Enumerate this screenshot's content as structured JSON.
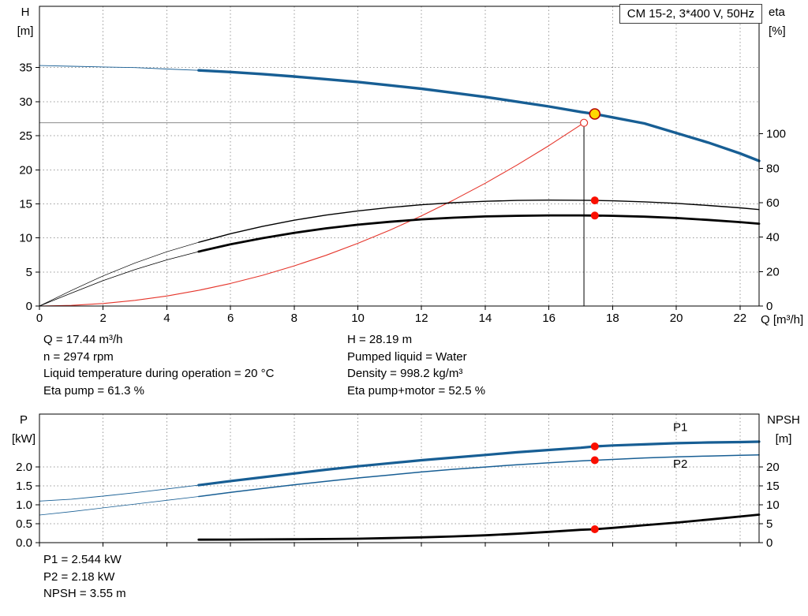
{
  "window": {
    "title_box": "CM 15-2, 3*400 V, 50Hz"
  },
  "colors": {
    "curve_blue": "#175e94",
    "curve_black": "#000000",
    "curve_red": "#e5352b",
    "dot_red": "#fa0f00",
    "duty_yellow": "#ffd800",
    "duty_ring": "#b40000",
    "grid": "#9a9a9a",
    "guide_gray": "#8c8c8c"
  },
  "info_top_left": [
    "Q = 17.44 m³/h",
    "n = 2974 rpm",
    "Liquid temperature during operation = 20 °C",
    "Eta pump = 61.3 %"
  ],
  "info_top_right": [
    "H = 28.19 m",
    "Pumped liquid = Water",
    "Density = 998.2 kg/m³",
    "Eta pump+motor = 52.5 %"
  ],
  "info_bottom": [
    "P1 = 2.544 kW",
    "P2 = 2.18 kW",
    "NPSH = 3.55 m"
  ],
  "chart_data": [
    {
      "id": "head-efficiency-chart",
      "type": "line",
      "title": "CM 15-2, 3*400 V, 50Hz",
      "xlabel": "Q [m³/h]",
      "xlim": [
        0,
        22.6
      ],
      "x_ticks": [
        0,
        2,
        4,
        6,
        8,
        10,
        12,
        14,
        16,
        18,
        20,
        22
      ],
      "x_tick_labels": [
        "0",
        "2",
        "4",
        "6",
        "8",
        "10",
        "12",
        "14",
        "16",
        "18",
        "20",
        "22"
      ],
      "show_x_labels": true,
      "left_axis": {
        "label": [
          "H",
          "[m]"
        ],
        "lim": [
          0,
          44
        ],
        "ticks": [
          0,
          5,
          10,
          15,
          20,
          25,
          30,
          35
        ],
        "labels": [
          "0",
          "5",
          "10",
          "15",
          "20",
          "25",
          "30",
          "35"
        ]
      },
      "right_axis": {
        "label": [
          "eta",
          "[%]"
        ],
        "lim": [
          0,
          174
        ],
        "ticks": [
          0,
          20,
          40,
          60,
          80,
          100
        ],
        "labels": [
          "0",
          "20",
          "40",
          "60",
          "80",
          "100"
        ]
      },
      "guides": {
        "h_value": 26.9,
        "v_q": 17.1,
        "v_top": 26.9
      },
      "series": [
        {
          "id": "system-curve",
          "name": "System curve",
          "axis": "left",
          "color": "#e5352b",
          "width": 1.1,
          "points": [
            [
              0,
              0
            ],
            [
              1,
              0.09
            ],
            [
              2,
              0.37
            ],
            [
              3,
              0.83
            ],
            [
              4,
              1.47
            ],
            [
              5,
              2.3
            ],
            [
              6,
              3.31
            ],
            [
              7,
              4.51
            ],
            [
              8,
              5.89
            ],
            [
              9,
              7.45
            ],
            [
              10,
              9.2
            ],
            [
              11,
              11.13
            ],
            [
              12,
              13.25
            ],
            [
              13,
              15.55
            ],
            [
              14,
              18.03
            ],
            [
              15,
              20.7
            ],
            [
              16,
              23.55
            ],
            [
              17,
              26.6
            ],
            [
              17.1,
              26.9
            ]
          ]
        },
        {
          "id": "eta-pump-curve",
          "name": "Eta pump",
          "axis": "right",
          "color": "#000000",
          "width": 1.4,
          "thin_until": 5,
          "thin_width": 0.7,
          "points": [
            [
              0,
              0
            ],
            [
              1,
              9
            ],
            [
              2,
              17.5
            ],
            [
              3,
              25
            ],
            [
              4,
              31.5
            ],
            [
              5,
              37
            ],
            [
              6,
              42
            ],
            [
              7,
              46.2
            ],
            [
              8,
              49.8
            ],
            [
              9,
              52.8
            ],
            [
              10,
              55.2
            ],
            [
              11,
              57.2
            ],
            [
              12,
              58.8
            ],
            [
              13,
              60
            ],
            [
              14,
              60.8
            ],
            [
              15,
              61.3
            ],
            [
              16,
              61.5
            ],
            [
              17,
              61.4
            ],
            [
              17.44,
              61.3
            ],
            [
              18,
              61.1
            ],
            [
              19,
              60.5
            ],
            [
              20,
              59.6
            ],
            [
              21,
              58.4
            ],
            [
              22,
              57
            ],
            [
              22.6,
              56
            ]
          ]
        },
        {
          "id": "eta-pump-motor-curve",
          "name": "Eta pump+motor",
          "axis": "right",
          "color": "#000000",
          "width": 2.8,
          "thin_until": 5,
          "thin_width": 0.8,
          "points": [
            [
              0,
              0
            ],
            [
              1,
              7.5
            ],
            [
              2,
              14.8
            ],
            [
              3,
              21.2
            ],
            [
              4,
              26.8
            ],
            [
              5,
              31.6
            ],
            [
              6,
              35.8
            ],
            [
              7,
              39.4
            ],
            [
              8,
              42.5
            ],
            [
              9,
              45.1
            ],
            [
              10,
              47.2
            ],
            [
              11,
              48.9
            ],
            [
              12,
              50.3
            ],
            [
              13,
              51.3
            ],
            [
              14,
              52
            ],
            [
              15,
              52.4
            ],
            [
              16,
              52.6
            ],
            [
              17,
              52.6
            ],
            [
              17.44,
              52.5
            ],
            [
              18,
              52.4
            ],
            [
              19,
              51.9
            ],
            [
              20,
              51.1
            ],
            [
              21,
              50
            ],
            [
              22,
              48.7
            ],
            [
              22.6,
              47.8
            ]
          ]
        },
        {
          "id": "hq-curve",
          "name": "H-Q pump curve",
          "axis": "left",
          "color": "#175e94",
          "width": 3.4,
          "thin_until": 5,
          "thin_width": 0.9,
          "points": [
            [
              0,
              35.3
            ],
            [
              1,
              35.2
            ],
            [
              2,
              35.1
            ],
            [
              3,
              35.0
            ],
            [
              4,
              34.8
            ],
            [
              5,
              34.6
            ],
            [
              6,
              34.35
            ],
            [
              7,
              34.05
            ],
            [
              8,
              33.7
            ],
            [
              9,
              33.3
            ],
            [
              10,
              32.9
            ],
            [
              11,
              32.4
            ],
            [
              12,
              31.9
            ],
            [
              13,
              31.3
            ],
            [
              14,
              30.7
            ],
            [
              15,
              30.0
            ],
            [
              16,
              29.3
            ],
            [
              17,
              28.5
            ],
            [
              17.44,
              28.19
            ],
            [
              18,
              27.7
            ],
            [
              19,
              26.8
            ],
            [
              20,
              25.4
            ],
            [
              21,
              24.0
            ],
            [
              22,
              22.4
            ],
            [
              22.6,
              21.3
            ]
          ]
        }
      ],
      "markers": [
        {
          "id": "requested-duty-point",
          "axis": "left",
          "q": 17.1,
          "v": 26.9,
          "r": 4.5,
          "fill": "#ffffff",
          "stroke": "#e5352b",
          "sw": 1.2
        },
        {
          "id": "eta-pump-point",
          "axis": "right",
          "q": 17.44,
          "v": 61.3,
          "r": 5,
          "fill": "#fa0f00"
        },
        {
          "id": "eta-pump-motor-point",
          "axis": "right",
          "q": 17.44,
          "v": 52.5,
          "r": 5,
          "fill": "#fa0f00"
        },
        {
          "id": "duty-point",
          "axis": "left",
          "q": 17.44,
          "v": 28.19,
          "r": 6.5,
          "fill": "#ffd800",
          "stroke": "#b40000",
          "sw": 1.6
        }
      ],
      "inline_labels": []
    },
    {
      "id": "power-npsh-chart",
      "type": "line",
      "xlabel": "",
      "xlim": [
        0,
        22.6
      ],
      "x_ticks": [
        0,
        2,
        4,
        6,
        8,
        10,
        12,
        14,
        16,
        18,
        20,
        22
      ],
      "x_tick_labels": [],
      "show_x_labels": false,
      "left_axis": {
        "label": [
          "P",
          "[kW]"
        ],
        "lim": [
          0,
          3.4
        ],
        "ticks": [
          0,
          0.5,
          1,
          1.5,
          2
        ],
        "labels": [
          "0.0",
          "0.5",
          "1.0",
          "1.5",
          "2.0"
        ]
      },
      "right_axis": {
        "label": [
          "NPSH",
          "[m]"
        ],
        "lim": [
          0,
          34
        ],
        "ticks": [
          0,
          5,
          10,
          15,
          20
        ],
        "labels": [
          "0",
          "5",
          "10",
          "15",
          "20"
        ]
      },
      "guides": null,
      "series": [
        {
          "id": "p1-curve",
          "name": "P1",
          "axis": "left",
          "color": "#175e94",
          "width": 3.2,
          "thin_until": 5,
          "thin_width": 0.9,
          "points": [
            [
              0,
              1.1
            ],
            [
              1,
              1.15
            ],
            [
              2,
              1.23
            ],
            [
              3,
              1.32
            ],
            [
              4,
              1.42
            ],
            [
              5,
              1.52
            ],
            [
              6,
              1.63
            ],
            [
              7,
              1.73
            ],
            [
              8,
              1.83
            ],
            [
              9,
              1.93
            ],
            [
              10,
              2.02
            ],
            [
              11,
              2.1
            ],
            [
              12,
              2.18
            ],
            [
              13,
              2.25
            ],
            [
              14,
              2.32
            ],
            [
              15,
              2.39
            ],
            [
              16,
              2.45
            ],
            [
              17,
              2.51
            ],
            [
              17.44,
              2.544
            ],
            [
              18,
              2.57
            ],
            [
              19,
              2.6
            ],
            [
              20,
              2.63
            ],
            [
              21,
              2.65
            ],
            [
              22,
              2.66
            ],
            [
              22.6,
              2.67
            ]
          ]
        },
        {
          "id": "p2-curve",
          "name": "P2",
          "axis": "left",
          "color": "#175e94",
          "width": 1.5,
          "thin_until": 5,
          "thin_width": 0.8,
          "points": [
            [
              0,
              0.73
            ],
            [
              1,
              0.82
            ],
            [
              2,
              0.92
            ],
            [
              3,
              1.02
            ],
            [
              4,
              1.12
            ],
            [
              5,
              1.22
            ],
            [
              6,
              1.33
            ],
            [
              7,
              1.43
            ],
            [
              8,
              1.53
            ],
            [
              9,
              1.62
            ],
            [
              10,
              1.71
            ],
            [
              11,
              1.79
            ],
            [
              12,
              1.87
            ],
            [
              13,
              1.94
            ],
            [
              14,
              2.0
            ],
            [
              15,
              2.06
            ],
            [
              16,
              2.11
            ],
            [
              17,
              2.16
            ],
            [
              17.44,
              2.18
            ],
            [
              18,
              2.2
            ],
            [
              19,
              2.24
            ],
            [
              20,
              2.27
            ],
            [
              21,
              2.29
            ],
            [
              22,
              2.31
            ],
            [
              22.6,
              2.32
            ]
          ]
        },
        {
          "id": "npsh-curve",
          "name": "NPSH",
          "axis": "right",
          "color": "#000000",
          "width": 2.8,
          "points": [
            [
              5,
              0.8
            ],
            [
              6,
              0.82
            ],
            [
              7,
              0.85
            ],
            [
              8,
              0.9
            ],
            [
              9,
              0.95
            ],
            [
              10,
              1.05
            ],
            [
              11,
              1.2
            ],
            [
              12,
              1.4
            ],
            [
              13,
              1.65
            ],
            [
              14,
              1.95
            ],
            [
              15,
              2.35
            ],
            [
              16,
              2.85
            ],
            [
              17,
              3.4
            ],
            [
              17.44,
              3.55
            ],
            [
              18,
              3.9
            ],
            [
              19,
              4.6
            ],
            [
              20,
              5.3
            ],
            [
              21,
              6.1
            ],
            [
              22,
              6.9
            ],
            [
              22.6,
              7.4
            ]
          ]
        }
      ],
      "markers": [
        {
          "id": "p1-point",
          "axis": "left",
          "q": 17.44,
          "v": 2.544,
          "r": 5,
          "fill": "#fa0f00"
        },
        {
          "id": "p2-point",
          "axis": "left",
          "q": 17.44,
          "v": 2.18,
          "r": 5,
          "fill": "#fa0f00"
        },
        {
          "id": "npsh-point",
          "axis": "right",
          "q": 17.44,
          "v": 3.55,
          "r": 5,
          "fill": "#fa0f00"
        }
      ],
      "inline_labels": [
        {
          "text": "P1",
          "q": 19.9,
          "v": 2.95,
          "axis": "left",
          "color": "#175e94"
        },
        {
          "text": "P2",
          "q": 19.9,
          "v": 1.98,
          "axis": "left",
          "color": "#175e94"
        }
      ]
    }
  ]
}
